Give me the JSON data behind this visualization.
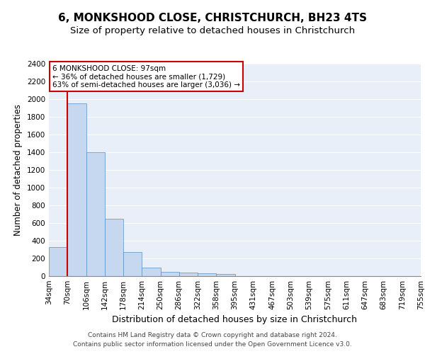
{
  "title": "6, MONKSHOOD CLOSE, CHRISTCHURCH, BH23 4TS",
  "subtitle": "Size of property relative to detached houses in Christchurch",
  "xlabel": "Distribution of detached houses by size in Christchurch",
  "ylabel": "Number of detached properties",
  "bar_values": [
    325,
    1950,
    1400,
    650,
    275,
    100,
    48,
    42,
    35,
    22,
    0,
    0,
    0,
    0,
    0,
    0,
    0,
    0,
    0,
    0
  ],
  "bar_labels": [
    "34sqm",
    "70sqm",
    "106sqm",
    "142sqm",
    "178sqm",
    "214sqm",
    "250sqm",
    "286sqm",
    "322sqm",
    "358sqm",
    "395sqm",
    "431sqm",
    "467sqm",
    "503sqm",
    "539sqm",
    "575sqm",
    "611sqm",
    "647sqm",
    "683sqm",
    "719sqm",
    "755sqm"
  ],
  "bar_color": "#c5d8f0",
  "bar_edge_color": "#5a8fc0",
  "vline_x": 1,
  "vline_color": "#cc0000",
  "ylim": [
    0,
    2400
  ],
  "yticks": [
    0,
    200,
    400,
    600,
    800,
    1000,
    1200,
    1400,
    1600,
    1800,
    2000,
    2200,
    2400
  ],
  "annotation_title": "6 MONKSHOOD CLOSE: 97sqm",
  "annotation_line1": "← 36% of detached houses are smaller (1,729)",
  "annotation_line2": "63% of semi-detached houses are larger (3,036) →",
  "annotation_box_color": "#cc0000",
  "footer1": "Contains HM Land Registry data © Crown copyright and database right 2024.",
  "footer2": "Contains public sector information licensed under the Open Government Licence v3.0.",
  "bg_color": "#e8eff8",
  "grid_color": "#ffffff",
  "title_fontsize": 11,
  "subtitle_fontsize": 9.5,
  "xlabel_fontsize": 9,
  "ylabel_fontsize": 8.5,
  "tick_fontsize": 7.5,
  "footer_fontsize": 6.5,
  "annot_fontsize": 7.5
}
